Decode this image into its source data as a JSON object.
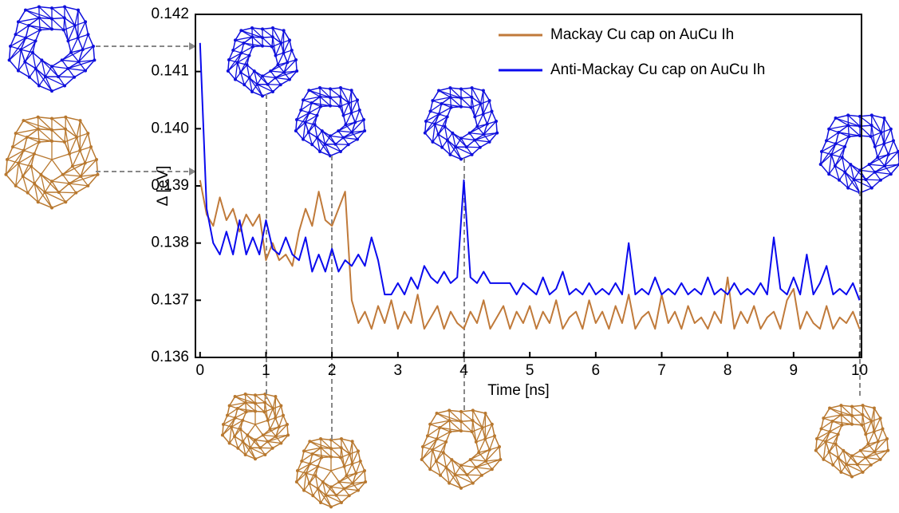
{
  "chart_data": {
    "type": "line",
    "xlabel": "Time [ns]",
    "ylabel": "Δ [eV]",
    "x": [
      0,
      0.1,
      0.2,
      0.3,
      0.4,
      0.5,
      0.6,
      0.7,
      0.8,
      0.9,
      1,
      1.1,
      1.2,
      1.3,
      1.4,
      1.5,
      1.6,
      1.7,
      1.8,
      1.9,
      2,
      2.1,
      2.2,
      2.3,
      2.4,
      2.5,
      2.6,
      2.7,
      2.8,
      2.9,
      3,
      3.1,
      3.2,
      3.3,
      3.4,
      3.5,
      3.6,
      3.7,
      3.8,
      3.9,
      4,
      4.1,
      4.2,
      4.3,
      4.4,
      4.5,
      4.6,
      4.7,
      4.8,
      4.9,
      5,
      5.1,
      5.2,
      5.3,
      5.4,
      5.5,
      5.6,
      5.7,
      5.8,
      5.9,
      6,
      6.1,
      6.2,
      6.3,
      6.4,
      6.5,
      6.6,
      6.7,
      6.8,
      6.9,
      7,
      7.1,
      7.2,
      7.3,
      7.4,
      7.5,
      7.6,
      7.7,
      7.8,
      7.9,
      8,
      8.1,
      8.2,
      8.3,
      8.4,
      8.5,
      8.6,
      8.7,
      8.8,
      8.9,
      9,
      9.1,
      9.2,
      9.3,
      9.4,
      9.5,
      9.6,
      9.7,
      9.8,
      9.9,
      10
    ],
    "series": [
      {
        "name": "Mackay Cu cap on AuCu Ih",
        "color": "#c07a3a",
        "values": [
          0.1391,
          0.1385,
          0.1383,
          0.1388,
          0.1384,
          0.1386,
          0.1382,
          0.1385,
          0.1383,
          0.1385,
          0.1377,
          0.138,
          0.1377,
          0.1378,
          0.1376,
          0.1382,
          0.1386,
          0.1383,
          0.1389,
          0.1384,
          0.1383,
          0.1386,
          0.1389,
          0.137,
          0.1366,
          0.1368,
          0.1365,
          0.1369,
          0.1366,
          0.137,
          0.1365,
          0.1368,
          0.1366,
          0.1371,
          0.1365,
          0.1367,
          0.1369,
          0.1365,
          0.1368,
          0.1366,
          0.1365,
          0.1368,
          0.1366,
          0.137,
          0.1365,
          0.1367,
          0.1369,
          0.1365,
          0.1368,
          0.1366,
          0.1369,
          0.1365,
          0.1368,
          0.1366,
          0.137,
          0.1365,
          0.1367,
          0.1368,
          0.1365,
          0.137,
          0.1366,
          0.1368,
          0.1365,
          0.1369,
          0.1366,
          0.1371,
          0.1365,
          0.1367,
          0.1368,
          0.1365,
          0.1371,
          0.1366,
          0.1368,
          0.1365,
          0.1369,
          0.1366,
          0.1367,
          0.1365,
          0.1368,
          0.1366,
          0.1374,
          0.1365,
          0.1368,
          0.1366,
          0.1369,
          0.1365,
          0.1367,
          0.1368,
          0.1365,
          0.137,
          0.1372,
          0.1365,
          0.1368,
          0.1366,
          0.1365,
          0.1369,
          0.1365,
          0.1367,
          0.1366,
          0.1368,
          0.1365
        ]
      },
      {
        "name": "Anti-Mackay Cu cap on AuCu Ih",
        "color": "#0a0aee",
        "values": [
          0.1415,
          0.1386,
          0.138,
          0.1378,
          0.1382,
          0.1378,
          0.1384,
          0.1378,
          0.1381,
          0.1378,
          0.1384,
          0.1379,
          0.1378,
          0.1381,
          0.1378,
          0.1377,
          0.1381,
          0.1375,
          0.1378,
          0.1375,
          0.1379,
          0.1375,
          0.1377,
          0.1376,
          0.1378,
          0.1376,
          0.1381,
          0.1377,
          0.1371,
          0.1371,
          0.1373,
          0.1371,
          0.1374,
          0.1372,
          0.1376,
          0.1374,
          0.1373,
          0.1375,
          0.1373,
          0.1374,
          0.1391,
          0.1374,
          0.1373,
          0.1375,
          0.1373,
          0.1373,
          0.1373,
          0.1373,
          0.1371,
          0.1373,
          0.1372,
          0.1371,
          0.1374,
          0.1371,
          0.1372,
          0.1375,
          0.1371,
          0.1372,
          0.1371,
          0.1373,
          0.1371,
          0.1372,
          0.1371,
          0.1373,
          0.1371,
          0.138,
          0.1371,
          0.1372,
          0.1371,
          0.1374,
          0.1371,
          0.1372,
          0.1371,
          0.1373,
          0.1371,
          0.1372,
          0.1371,
          0.1374,
          0.1371,
          0.1372,
          0.1371,
          0.1373,
          0.1371,
          0.1372,
          0.1371,
          0.1373,
          0.1371,
          0.1381,
          0.1372,
          0.1371,
          0.1374,
          0.1371,
          0.1378,
          0.1371,
          0.1373,
          0.1376,
          0.1371,
          0.1372,
          0.1371,
          0.1373,
          0.137
        ]
      }
    ],
    "xlim": [
      -0.07,
      10.03
    ],
    "xticks": [
      0,
      1,
      2,
      3,
      4,
      5,
      6,
      7,
      8,
      9,
      10
    ],
    "ylim": [
      0.136,
      0.142
    ],
    "yticks": [
      0.136,
      0.137,
      0.138,
      0.139,
      {
        "value": 0.14,
        "label": "0.140"
      },
      0.141,
      0.142
    ],
    "legend": "upper right"
  }
}
